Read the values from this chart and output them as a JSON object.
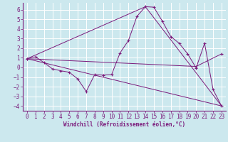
{
  "xlabel": "Windchill (Refroidissement éolien,°C)",
  "bg_color": "#cce8ee",
  "grid_color": "#ffffff",
  "line_color": "#7b1a7b",
  "xlim": [
    -0.5,
    23.5
  ],
  "ylim": [
    -4.5,
    6.7
  ],
  "yticks": [
    -4,
    -3,
    -2,
    -1,
    0,
    1,
    2,
    3,
    4,
    5,
    6
  ],
  "xticks": [
    0,
    1,
    2,
    3,
    4,
    5,
    6,
    7,
    8,
    9,
    10,
    11,
    12,
    13,
    14,
    15,
    16,
    17,
    18,
    19,
    20,
    21,
    22,
    23
  ],
  "line1_x": [
    0,
    1,
    2,
    3,
    4,
    5,
    6,
    7,
    8,
    9,
    10,
    11,
    12,
    13,
    14,
    15,
    16,
    17,
    18,
    19,
    20,
    21,
    22,
    23
  ],
  "line1_y": [
    0.9,
    1.1,
    0.5,
    -0.15,
    -0.35,
    -0.5,
    -1.2,
    -2.5,
    -0.75,
    -0.8,
    -0.75,
    1.5,
    2.8,
    5.3,
    6.3,
    6.25,
    4.8,
    3.2,
    2.5,
    1.4,
    -0.05,
    2.5,
    -2.3,
    -4.0
  ],
  "line2_x": [
    0,
    23
  ],
  "line2_y": [
    0.9,
    -4.0
  ],
  "line3_x": [
    0,
    14,
    23
  ],
  "line3_y": [
    0.9,
    6.3,
    -4.0
  ],
  "line4_x": [
    0,
    20,
    23
  ],
  "line4_y": [
    0.9,
    0.1,
    1.4
  ],
  "tick_fontsize": 5.5,
  "xlabel_fontsize": 5.5
}
